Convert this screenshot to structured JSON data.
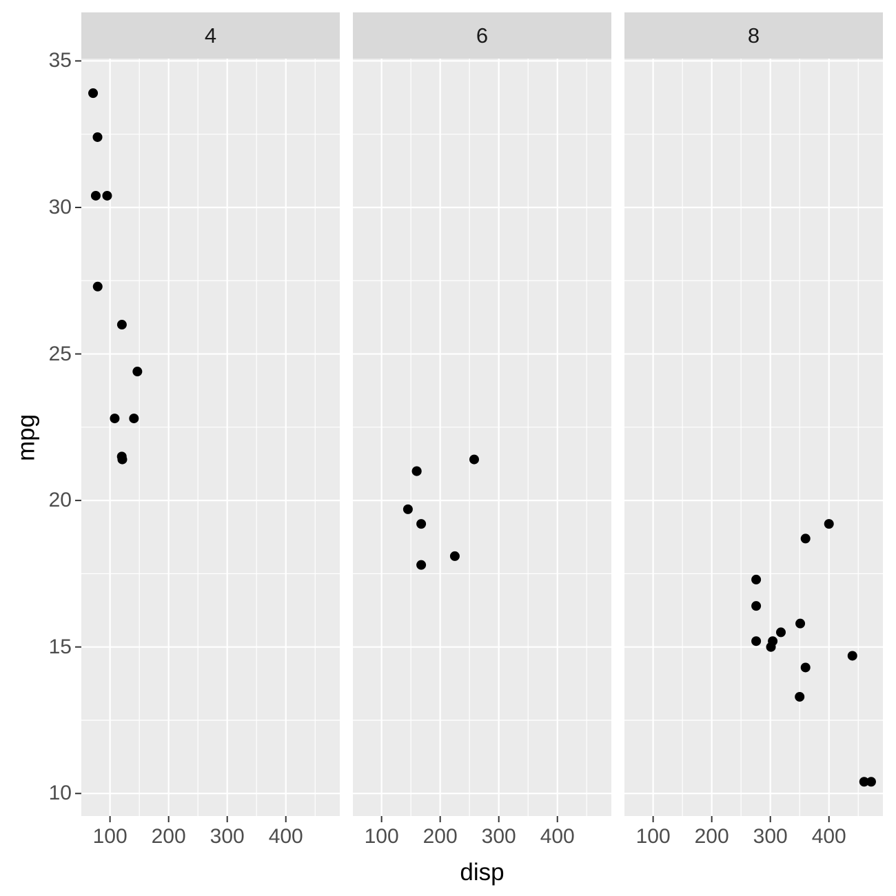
{
  "figure": {
    "background_color": "#ffffff",
    "panel_fill": "#ebebeb",
    "strip_fill": "#d9d9d9",
    "grid_color": "#ffffff",
    "point_color": "#000000",
    "tick_mark_color": "#333333",
    "tick_label_color": "#4d4d4d",
    "axis_title_color": "#000000",
    "strip_text_color": "#1a1a1a"
  },
  "chart_data": {
    "type": "scatter",
    "title": "",
    "xlabel": "disp",
    "ylabel": "mpg",
    "facet_labels": [
      "4",
      "6",
      "8"
    ],
    "x_ticks": [
      100,
      200,
      300,
      400
    ],
    "x_minor_gridlines": [
      150,
      250,
      350,
      450
    ],
    "y_ticks": [
      10,
      15,
      20,
      25,
      30,
      35
    ],
    "y_minor_gridlines": [
      12.5,
      17.5,
      22.5,
      27.5,
      32.5
    ],
    "xlim": [
      51.06,
      492.04
    ],
    "ylim": [
      9.23,
      35.08
    ],
    "grid": "on",
    "legend": "none",
    "facets": [
      {
        "label": "4",
        "points": [
          {
            "x": 71.1,
            "y": 33.9
          },
          {
            "x": 78.7,
            "y": 32.4
          },
          {
            "x": 75.7,
            "y": 30.4
          },
          {
            "x": 95.1,
            "y": 30.4
          },
          {
            "x": 79.0,
            "y": 27.3
          },
          {
            "x": 120.3,
            "y": 26.0
          },
          {
            "x": 146.7,
            "y": 24.4
          },
          {
            "x": 108.0,
            "y": 22.8
          },
          {
            "x": 140.8,
            "y": 22.8
          },
          {
            "x": 120.1,
            "y": 21.5
          },
          {
            "x": 121.0,
            "y": 21.4
          }
        ]
      },
      {
        "label": "6",
        "points": [
          {
            "x": 160.0,
            "y": 21.0
          },
          {
            "x": 160.0,
            "y": 21.0
          },
          {
            "x": 258.0,
            "y": 21.4
          },
          {
            "x": 145.0,
            "y": 19.7
          },
          {
            "x": 167.6,
            "y": 19.2
          },
          {
            "x": 225.0,
            "y": 18.1
          },
          {
            "x": 167.6,
            "y": 17.8
          }
        ]
      },
      {
        "label": "8",
        "points": [
          {
            "x": 400.0,
            "y": 19.2
          },
          {
            "x": 360.0,
            "y": 18.7
          },
          {
            "x": 275.8,
            "y": 17.3
          },
          {
            "x": 275.8,
            "y": 16.4
          },
          {
            "x": 351.0,
            "y": 15.8
          },
          {
            "x": 318.0,
            "y": 15.5
          },
          {
            "x": 275.8,
            "y": 15.2
          },
          {
            "x": 304.0,
            "y": 15.2
          },
          {
            "x": 301.0,
            "y": 15.0
          },
          {
            "x": 440.0,
            "y": 14.7
          },
          {
            "x": 360.0,
            "y": 14.3
          },
          {
            "x": 350.0,
            "y": 13.3
          },
          {
            "x": 460.0,
            "y": 10.4
          },
          {
            "x": 472.0,
            "y": 10.4
          }
        ]
      }
    ]
  }
}
